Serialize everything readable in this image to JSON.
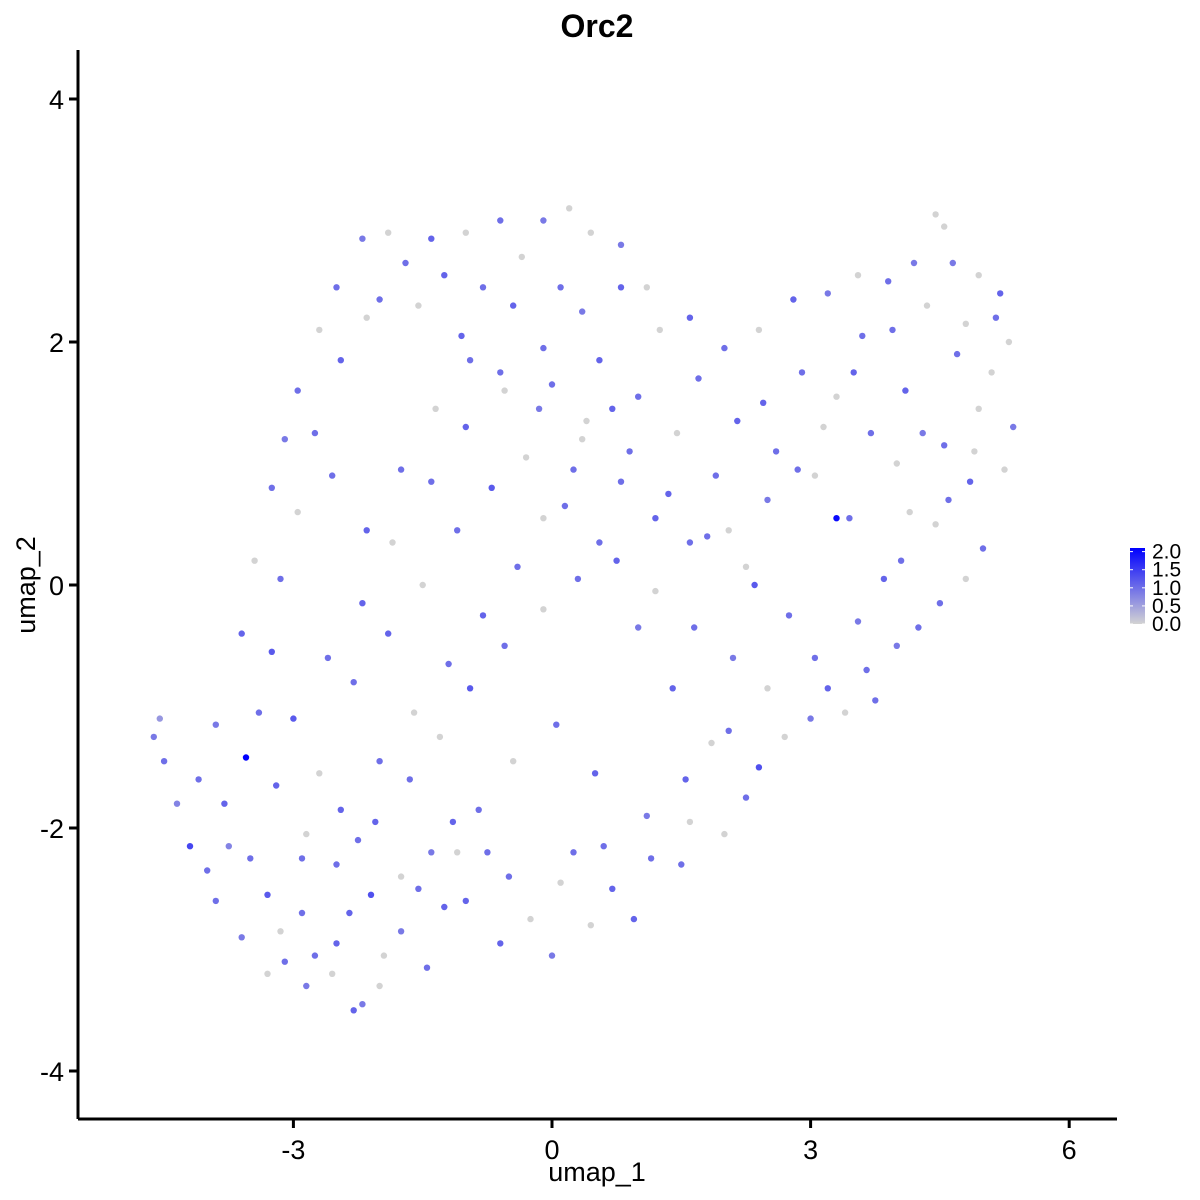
{
  "chart_data": {
    "type": "scatter",
    "title": "Orc2",
    "xlabel": "umap_1",
    "ylabel": "umap_2",
    "xlim": [
      -5.4,
      6.5
    ],
    "ylim": [
      -4.4,
      4.4
    ],
    "x_ticks": [
      -3,
      0,
      3,
      6
    ],
    "x_tick_labels": [
      "-3",
      "0",
      "3",
      "6"
    ],
    "y_ticks": [
      -4,
      -2,
      0,
      2,
      4
    ],
    "y_tick_labels": [
      "-4",
      "-2",
      "0",
      "2",
      "4"
    ],
    "grid": false,
    "legend": {
      "placement": "right",
      "color_low": "#d3d3d3",
      "color_high": "#0000ff",
      "min": 0.0,
      "max": 2.1,
      "ticks": [
        0.0,
        0.5,
        1.0,
        1.5,
        2.0
      ],
      "tick_labels": [
        "0.0",
        "0.5",
        "1.0",
        "1.5",
        "2.0"
      ]
    },
    "points": [
      [
        -4.62,
        -1.25,
        0.9
      ],
      [
        -4.55,
        -1.1,
        0.6
      ],
      [
        -4.5,
        -1.45,
        1.0
      ],
      [
        -4.35,
        -1.8,
        0.8
      ],
      [
        -4.2,
        -2.15,
        1.4
      ],
      [
        -3.55,
        -1.42,
        2.1
      ],
      [
        -3.9,
        -2.6,
        1.0
      ],
      [
        -3.6,
        -2.9,
        0.9
      ],
      [
        -3.3,
        -3.2,
        0.0
      ],
      [
        -3.1,
        -3.1,
        1.0
      ],
      [
        -2.85,
        -3.3,
        0.9
      ],
      [
        -2.55,
        -3.2,
        0.0
      ],
      [
        -2.3,
        -3.5,
        1.1
      ],
      [
        -2.2,
        -3.45,
        0.9
      ],
      [
        -2.0,
        -3.3,
        0.0
      ],
      [
        -1.45,
        -3.15,
        1.0
      ],
      [
        -1.1,
        -2.2,
        0.0
      ],
      [
        -0.6,
        -2.95,
        1.1
      ],
      [
        0.0,
        -3.05,
        0.9
      ],
      [
        0.45,
        -2.8,
        0.0
      ],
      [
        0.95,
        -2.75,
        1.1
      ],
      [
        1.5,
        -2.3,
        1.0
      ],
      [
        2.0,
        -2.05,
        0.0
      ],
      [
        2.4,
        -1.5,
        1.3
      ],
      [
        2.7,
        -1.25,
        0.0
      ],
      [
        3.0,
        -1.1,
        0.9
      ],
      [
        3.4,
        -1.05,
        0.0
      ],
      [
        3.65,
        -0.7,
        1.0
      ],
      [
        4.0,
        -0.5,
        0.9
      ],
      [
        4.5,
        -0.15,
        1.0
      ],
      [
        4.8,
        0.05,
        0.0
      ],
      [
        5.0,
        0.3,
        1.0
      ],
      [
        5.25,
        0.95,
        0.0
      ],
      [
        5.35,
        1.3,
        0.9
      ],
      [
        5.3,
        2.0,
        0.0
      ],
      [
        5.2,
        2.4,
        1.1
      ],
      [
        4.95,
        2.55,
        0.0
      ],
      [
        4.65,
        2.65,
        0.9
      ],
      [
        4.55,
        2.95,
        0.0
      ],
      [
        4.45,
        3.05,
        0.0
      ],
      [
        4.2,
        2.65,
        0.9
      ],
      [
        3.9,
        2.5,
        1.0
      ],
      [
        3.55,
        2.55,
        0.0
      ],
      [
        3.2,
        2.4,
        0.9
      ],
      [
        2.8,
        2.35,
        1.1
      ],
      [
        2.4,
        2.1,
        0.0
      ],
      [
        2.0,
        1.95,
        1.0
      ],
      [
        1.6,
        2.2,
        1.1
      ],
      [
        1.1,
        2.45,
        0.0
      ],
      [
        0.8,
        2.8,
        0.9
      ],
      [
        0.45,
        2.9,
        0.0
      ],
      [
        0.2,
        3.1,
        0.0
      ],
      [
        -0.1,
        3.0,
        0.9
      ],
      [
        -0.6,
        3.0,
        1.0
      ],
      [
        -1.0,
        2.9,
        0.0
      ],
      [
        -1.4,
        2.85,
        1.1
      ],
      [
        -1.9,
        2.9,
        0.0
      ],
      [
        -2.2,
        2.85,
        0.9
      ],
      [
        -2.5,
        2.45,
        1.0
      ],
      [
        -2.7,
        2.1,
        0.0
      ],
      [
        -2.95,
        1.6,
        1.0
      ],
      [
        -3.1,
        1.2,
        0.9
      ],
      [
        -3.25,
        0.8,
        1.0
      ],
      [
        -3.45,
        0.2,
        0.0
      ],
      [
        -3.6,
        -0.4,
        1.1
      ],
      [
        -3.9,
        -1.15,
        0.9
      ],
      [
        -4.1,
        -1.6,
        1.0
      ],
      [
        -3.75,
        -2.15,
        0.8
      ],
      [
        -3.3,
        -2.55,
        1.2
      ],
      [
        -2.9,
        -2.7,
        1.0
      ],
      [
        -2.5,
        -2.95,
        1.1
      ],
      [
        -2.1,
        -2.55,
        1.3
      ],
      [
        -1.75,
        -2.4,
        0.0
      ],
      [
        -1.4,
        -2.2,
        0.9
      ],
      [
        -1.0,
        -2.6,
        1.1
      ],
      [
        -0.5,
        -2.4,
        1.0
      ],
      [
        0.1,
        -2.45,
        0.0
      ],
      [
        0.6,
        -2.15,
        1.0
      ],
      [
        1.1,
        -1.9,
        0.9
      ],
      [
        1.55,
        -1.6,
        1.1
      ],
      [
        2.05,
        -1.2,
        1.0
      ],
      [
        2.5,
        -0.85,
        0.0
      ],
      [
        3.05,
        -0.6,
        1.0
      ],
      [
        3.55,
        -0.3,
        0.9
      ],
      [
        4.05,
        0.2,
        1.0
      ],
      [
        4.45,
        0.5,
        0.0
      ],
      [
        4.85,
        0.85,
        1.1
      ],
      [
        4.95,
        1.45,
        0.0
      ],
      [
        4.7,
        1.9,
        1.0
      ],
      [
        4.35,
        2.3,
        0.0
      ],
      [
        3.95,
        2.1,
        1.0
      ],
      [
        3.5,
        1.75,
        1.1
      ],
      [
        3.15,
        1.3,
        0.0
      ],
      [
        2.85,
        0.95,
        1.0
      ],
      [
        2.5,
        0.7,
        0.9
      ],
      [
        2.05,
        0.45,
        0.0
      ],
      [
        1.6,
        0.35,
        1.0
      ],
      [
        1.2,
        0.55,
        1.1
      ],
      [
        0.8,
        0.85,
        1.0
      ],
      [
        0.35,
        1.2,
        0.0
      ],
      [
        -0.15,
        1.45,
        0.9
      ],
      [
        -0.6,
        1.75,
        1.0
      ],
      [
        -1.05,
        2.05,
        1.1
      ],
      [
        -1.55,
        2.3,
        0.0
      ],
      [
        -2.0,
        2.35,
        1.0
      ],
      [
        -2.45,
        1.85,
        1.1
      ],
      [
        -2.75,
        1.25,
        1.0
      ],
      [
        -2.95,
        0.6,
        0.0
      ],
      [
        -3.15,
        0.05,
        1.0
      ],
      [
        -3.25,
        -0.55,
        1.2
      ],
      [
        -3.4,
        -1.05,
        1.0
      ],
      [
        -3.2,
        -1.65,
        1.1
      ],
      [
        -2.85,
        -2.05,
        0.0
      ],
      [
        -2.5,
        -2.3,
        1.0
      ],
      [
        -2.05,
        -1.95,
        1.1
      ],
      [
        -1.65,
        -1.6,
        1.0
      ],
      [
        -1.3,
        -1.25,
        0.0
      ],
      [
        -0.95,
        -0.85,
        1.2
      ],
      [
        -0.55,
        -0.5,
        1.0
      ],
      [
        -0.1,
        -0.2,
        0.0
      ],
      [
        0.3,
        0.05,
        1.0
      ],
      [
        0.75,
        0.2,
        1.1
      ],
      [
        1.2,
        -0.05,
        0.0
      ],
      [
        1.65,
        -0.35,
        1.0
      ],
      [
        2.1,
        -0.6,
        0.9
      ],
      [
        -2.3,
        -0.8,
        1.0
      ],
      [
        -1.9,
        -0.4,
        1.1
      ],
      [
        -1.5,
        0.0,
        0.0
      ],
      [
        -1.1,
        0.45,
        1.0
      ],
      [
        -0.7,
        0.8,
        1.2
      ],
      [
        -0.3,
        1.05,
        0.0
      ],
      [
        0.15,
        0.65,
        1.0
      ],
      [
        0.55,
        0.35,
        1.0
      ],
      [
        1.0,
        -0.35,
        0.9
      ],
      [
        1.4,
        -0.85,
        1.1
      ],
      [
        1.85,
        -1.3,
        0.0
      ],
      [
        2.25,
        -1.75,
        1.0
      ],
      [
        0.5,
        -1.55,
        1.1
      ],
      [
        0.05,
        -1.15,
        1.0
      ],
      [
        -0.45,
        -1.45,
        0.0
      ],
      [
        -0.85,
        -1.85,
        1.0
      ],
      [
        -1.25,
        -2.65,
        1.1
      ],
      [
        -1.75,
        -2.85,
        0.9
      ],
      [
        -2.25,
        -2.1,
        1.0
      ],
      [
        -2.7,
        -1.55,
        0.0
      ],
      [
        -3.0,
        -1.1,
        1.2
      ],
      [
        -2.6,
        -0.6,
        1.0
      ],
      [
        -2.2,
        -0.15,
        1.1
      ],
      [
        -1.85,
        0.35,
        0.0
      ],
      [
        -1.4,
        0.85,
        1.0
      ],
      [
        -1.0,
        1.3,
        1.1
      ],
      [
        -0.55,
        1.6,
        0.0
      ],
      [
        -0.1,
        1.95,
        1.0
      ],
      [
        0.35,
        2.25,
        0.9
      ],
      [
        0.8,
        2.45,
        1.1
      ],
      [
        1.25,
        2.1,
        0.0
      ],
      [
        1.7,
        1.7,
        1.0
      ],
      [
        2.15,
        1.35,
        1.1
      ],
      [
        2.6,
        1.1,
        1.0
      ],
      [
        3.05,
        0.9,
        0.0
      ],
      [
        3.45,
        0.55,
        1.0
      ],
      [
        3.85,
        0.05,
        1.1
      ],
      [
        4.25,
        -0.35,
        1.0
      ],
      [
        3.3,
        0.55,
        2.0
      ],
      [
        2.35,
        0.0,
        1.2
      ],
      [
        1.9,
        0.9,
        1.0
      ],
      [
        1.45,
        1.25,
        0.0
      ],
      [
        1.0,
        1.55,
        1.0
      ],
      [
        0.55,
        1.85,
        1.1
      ],
      [
        0.1,
        2.45,
        1.0
      ],
      [
        -0.35,
        2.7,
        0.0
      ],
      [
        -0.8,
        2.45,
        1.0
      ],
      [
        -1.25,
        2.55,
        1.1
      ],
      [
        -1.7,
        2.65,
        1.0
      ],
      [
        -2.15,
        2.2,
        0.0
      ],
      [
        -2.55,
        0.9,
        1.0
      ],
      [
        -2.15,
        0.45,
        1.1
      ],
      [
        -1.75,
        0.95,
        1.0
      ],
      [
        -1.35,
        1.45,
        0.0
      ],
      [
        -0.95,
        1.85,
        1.0
      ],
      [
        -0.45,
        2.3,
        1.1
      ],
      [
        0.0,
        1.65,
        1.0
      ],
      [
        0.4,
        1.35,
        0.0
      ],
      [
        0.9,
        1.1,
        1.0
      ],
      [
        1.35,
        0.75,
        1.1
      ],
      [
        1.8,
        0.4,
        1.0
      ],
      [
        2.25,
        0.15,
        0.0
      ],
      [
        2.75,
        -0.25,
        1.0
      ],
      [
        3.2,
        -0.85,
        1.1
      ],
      [
        3.75,
        -0.95,
        1.0
      ],
      [
        4.15,
        0.6,
        0.0
      ],
      [
        4.55,
        1.15,
        1.0
      ],
      [
        4.1,
        1.6,
        1.1
      ],
      [
        3.7,
        1.25,
        1.0
      ],
      [
        3.3,
        1.55,
        0.0
      ],
      [
        2.9,
        1.75,
        1.0
      ],
      [
        2.45,
        1.5,
        1.1
      ],
      [
        4.8,
        2.15,
        0.0
      ],
      [
        5.1,
        1.75,
        0.0
      ],
      [
        5.15,
        2.2,
        1.0
      ],
      [
        4.9,
        1.1,
        0.0
      ],
      [
        4.6,
        0.7,
        1.0
      ],
      [
        4.3,
        1.25,
        0.9
      ],
      [
        4.0,
        1.0,
        0.0
      ],
      [
        3.6,
        2.05,
        1.0
      ],
      [
        -4.0,
        -2.35,
        1.0
      ],
      [
        -3.8,
        -1.8,
        1.1
      ],
      [
        -3.5,
        -2.25,
        1.0
      ],
      [
        -3.15,
        -2.85,
        0.0
      ],
      [
        -2.75,
        -3.05,
        1.0
      ],
      [
        -2.35,
        -2.7,
        1.1
      ],
      [
        -1.95,
        -3.05,
        0.0
      ],
      [
        -1.55,
        -2.5,
        1.0
      ],
      [
        -1.15,
        -1.95,
        1.1
      ],
      [
        -0.75,
        -2.2,
        1.0
      ],
      [
        -0.25,
        -2.75,
        0.0
      ],
      [
        0.25,
        -2.2,
        1.0
      ],
      [
        0.7,
        -2.5,
        1.1
      ],
      [
        1.15,
        -2.25,
        1.0
      ],
      [
        1.6,
        -1.95,
        0.0
      ],
      [
        -2.9,
        -2.25,
        1.0
      ],
      [
        -2.45,
        -1.85,
        1.1
      ],
      [
        -2.0,
        -1.45,
        1.0
      ],
      [
        -1.6,
        -1.05,
        0.0
      ],
      [
        -1.2,
        -0.65,
        1.0
      ],
      [
        -0.8,
        -0.25,
        1.1
      ],
      [
        -0.4,
        0.15,
        1.0
      ],
      [
        -0.1,
        0.55,
        0.0
      ],
      [
        0.25,
        0.95,
        1.0
      ],
      [
        0.7,
        1.45,
        1.1
      ]
    ]
  }
}
